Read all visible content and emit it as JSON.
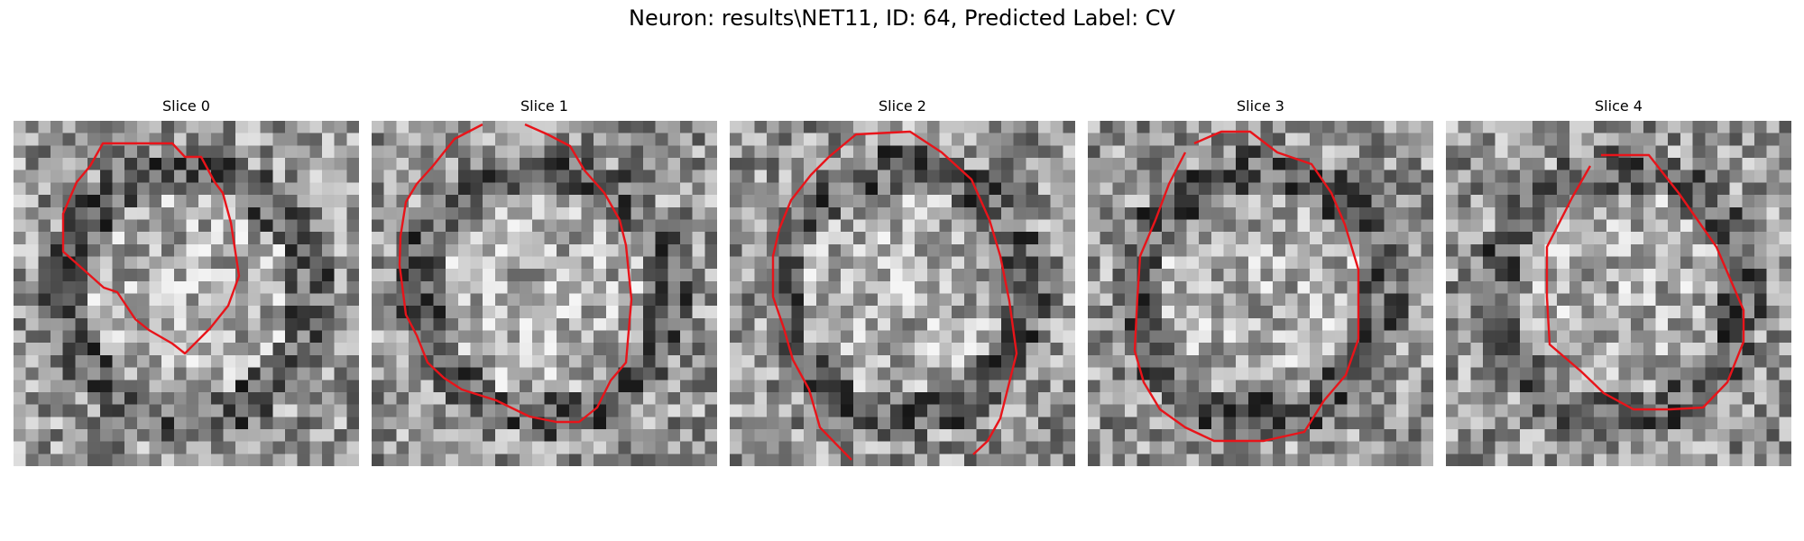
{
  "figure": {
    "suptitle": "Neuron: results\\NET11, ID: 64, Predicted Label: CV",
    "contour_color": "#e8141a",
    "colormap": "gray",
    "slices": [
      {
        "title": "Slice 0"
      },
      {
        "title": "Slice 1"
      },
      {
        "title": "Slice 2"
      },
      {
        "title": "Slice 3"
      },
      {
        "title": "Slice 4"
      }
    ]
  }
}
